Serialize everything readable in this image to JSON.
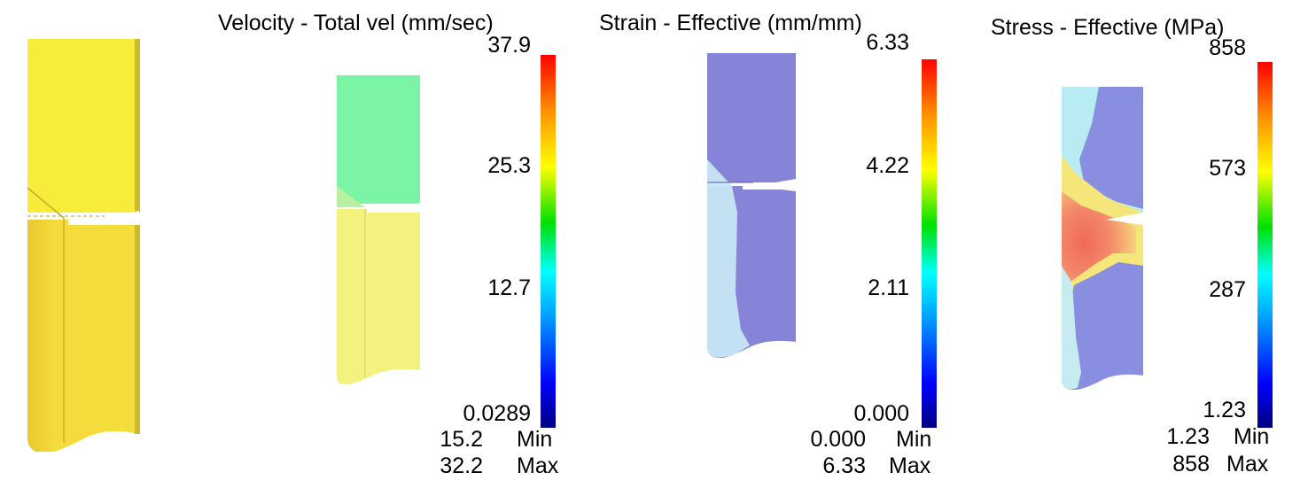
{
  "panels": [
    {
      "title": "",
      "field": "geometry",
      "colors": {
        "part": "#f7ec3a",
        "part_lower": "#f3dc38",
        "edge": "#b9a526"
      }
    },
    {
      "title": "Velocity - Total vel (mm/sec)",
      "field": "velocity",
      "ticks": [
        "37.9",
        "25.3",
        "12.7",
        "0.0289"
      ],
      "min_value": "15.2",
      "max_value": "32.2",
      "min_label": "Min",
      "max_label": "Max",
      "colors": {
        "upper_block": "#7cf4a6",
        "lower_block": "#f2f07a"
      }
    },
    {
      "title": "Strain - Effective (mm/mm)",
      "field": "strain",
      "ticks": [
        "6.33",
        "4.22",
        "2.11",
        "0.000"
      ],
      "min_value": "0.000",
      "max_value": "6.33",
      "min_label": "Min",
      "max_label": "Max",
      "colors": {
        "block": "#8684d8",
        "highlight": "#c8e6f4"
      }
    },
    {
      "title": "Stress - Effective (MPa)",
      "field": "stress",
      "ticks": [
        "858",
        "573",
        "287",
        "1.23"
      ],
      "min_value": "1.23",
      "max_value": "858",
      "min_label": "Min",
      "max_label": "Max",
      "colors": {
        "block": "#8a8ee0",
        "band_high": "#f37a6a",
        "band_mid": "#f6e77a",
        "band_low": "#b8ecf0"
      }
    }
  ],
  "colorbar_stops": [
    "#000080",
    "#0000ff",
    "#00a0ff",
    "#00ffff",
    "#00e000",
    "#ffff00",
    "#ff9000",
    "#ff0000"
  ]
}
